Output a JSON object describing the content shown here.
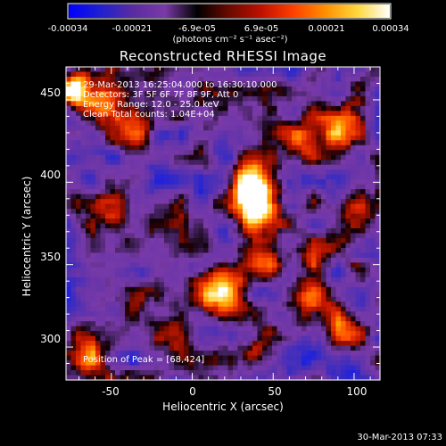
{
  "colorbar": {
    "ticks": [
      "-0.00034",
      "-0.00021",
      "-6.9e-05",
      "6.9e-05",
      "0.00021",
      "0.00034"
    ],
    "unit": "(photons cm⁻² s⁻¹ asec⁻²)",
    "colors": [
      "#0000ff",
      "#2020d0",
      "#5a2ba0",
      "#7a3aa8",
      "#000000",
      "#6a0a00",
      "#c01000",
      "#ff4000",
      "#ff9000",
      "#ffd840",
      "#ffffff"
    ]
  },
  "chart_data": {
    "type": "heatmap",
    "title": "Reconstructed RHESSI Image",
    "xlabel": "Heliocentric X (arcsec)",
    "ylabel": "Heliocentric Y (arcsec)",
    "xlim": [
      -78,
      116
    ],
    "ylim": [
      280,
      470
    ],
    "xticks": [
      "-50",
      "0",
      "50",
      "100"
    ],
    "yticks": [
      "450",
      "400",
      "350",
      "300"
    ],
    "annotations": [
      "29-Mar-2013 16:25:04.000 to 16:30:10.000",
      "Detectors: 3F 5F 6F 7F 8F 9F, Att 0",
      "Energy Range: 12.0 - 25.0 keV",
      "Clean    Total counts: 1.04E+04"
    ],
    "peak_label": "Position of Peak = [68,424]",
    "peak": [
      68,
      424
    ],
    "sources": [
      {
        "x": 38,
        "y": 398,
        "level": 1.0
      },
      {
        "x": 42,
        "y": 382,
        "level": 0.75
      },
      {
        "x": 22,
        "y": 335,
        "level": 0.85
      },
      {
        "x": 8,
        "y": 332,
        "level": 0.7
      },
      {
        "x": 45,
        "y": 352,
        "level": 0.6
      },
      {
        "x": 65,
        "y": 428,
        "level": 0.6
      },
      {
        "x": 90,
        "y": 435,
        "level": 0.55
      },
      {
        "x": -72,
        "y": 458,
        "level": 0.85
      },
      {
        "x": -58,
        "y": 448,
        "level": 0.55
      },
      {
        "x": -35,
        "y": 430,
        "level": 0.55
      },
      {
        "x": -48,
        "y": 385,
        "level": 0.45
      },
      {
        "x": 72,
        "y": 325,
        "level": 0.55
      },
      {
        "x": 95,
        "y": 310,
        "level": 0.5
      },
      {
        "x": -70,
        "y": 305,
        "level": 0.45
      },
      {
        "x": -60,
        "y": 290,
        "level": 0.45
      },
      {
        "x": 100,
        "y": 375,
        "level": 0.4
      },
      {
        "x": 40,
        "y": 300,
        "level": 0.4
      },
      {
        "x": -15,
        "y": 310,
        "level": 0.35
      },
      {
        "x": 75,
        "y": 355,
        "level": 0.45
      }
    ]
  },
  "footer": {
    "timestamp": "30-Mar-2013 07:33"
  }
}
